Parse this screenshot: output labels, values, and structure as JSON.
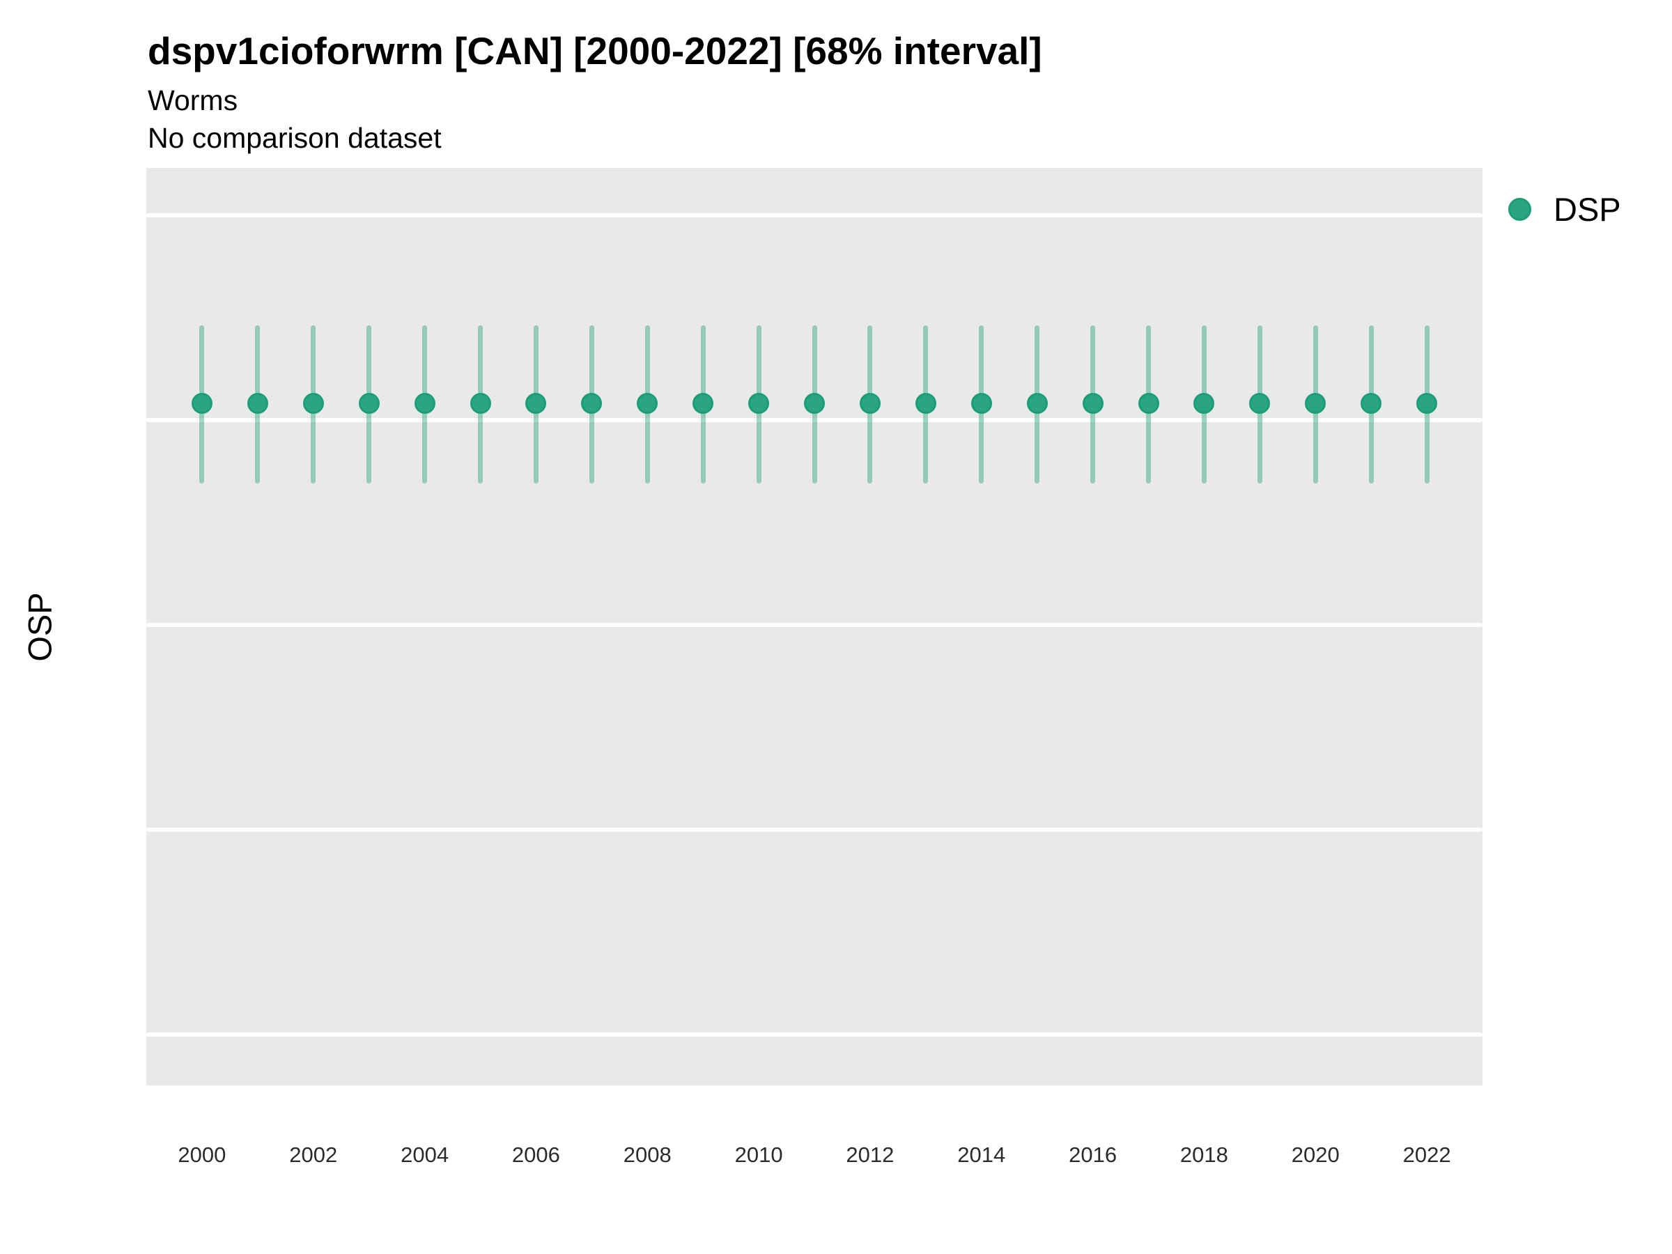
{
  "header": {
    "title": "dspv1cioforwrm [CAN] [2000-2022] [68% interval]",
    "subtitle": "Worms",
    "comparison_note": "No comparison dataset"
  },
  "legend": {
    "position": "right-top",
    "items": [
      {
        "label": "DSP",
        "marker": "circle",
        "color": "#2aa57f"
      }
    ]
  },
  "colors": {
    "panel_background": "#e9e9e9",
    "gridline": "#ffffff",
    "point_fill": "#2aa57f",
    "point_stroke": "#1b9e77",
    "interval_bar": "rgba(42,165,127,0.45)",
    "text": "#000000",
    "tick_text": "#2b2b2b"
  },
  "chart_data": {
    "type": "scatter",
    "title": "dspv1cioforwrm [CAN] [2000-2022] [68% interval]",
    "subtitle": "Worms",
    "annotation": "No comparison dataset",
    "xlabel": "",
    "ylabel": "OSP",
    "legend_position": "right",
    "grid": "horizontal-major-only",
    "interval_level": "68%",
    "xlim": [
      1999,
      2023
    ],
    "ylim": [
      -0.25,
      4.23
    ],
    "xticks": [
      2000,
      2002,
      2004,
      2006,
      2008,
      2010,
      2012,
      2014,
      2016,
      2018,
      2020,
      2022
    ],
    "yticks": [
      0,
      1,
      2,
      3,
      4
    ],
    "x": [
      2000,
      2001,
      2002,
      2003,
      2004,
      2005,
      2006,
      2007,
      2008,
      2009,
      2010,
      2011,
      2012,
      2013,
      2014,
      2015,
      2016,
      2017,
      2018,
      2019,
      2020,
      2021,
      2022
    ],
    "series": [
      {
        "name": "DSP",
        "values": [
          3.08,
          3.08,
          3.08,
          3.08,
          3.08,
          3.08,
          3.08,
          3.08,
          3.08,
          3.08,
          3.08,
          3.08,
          3.08,
          3.08,
          3.08,
          3.08,
          3.08,
          3.08,
          3.08,
          3.08,
          3.08,
          3.08,
          3.08
        ],
        "lower": [
          2.69,
          2.69,
          2.69,
          2.69,
          2.69,
          2.69,
          2.69,
          2.69,
          2.69,
          2.69,
          2.69,
          2.69,
          2.69,
          2.69,
          2.69,
          2.69,
          2.69,
          2.69,
          2.69,
          2.69,
          2.69,
          2.69,
          2.69
        ],
        "upper": [
          3.46,
          3.46,
          3.46,
          3.46,
          3.46,
          3.46,
          3.46,
          3.46,
          3.46,
          3.46,
          3.46,
          3.46,
          3.46,
          3.46,
          3.46,
          3.46,
          3.46,
          3.46,
          3.46,
          3.46,
          3.46,
          3.46,
          3.46
        ]
      }
    ]
  }
}
